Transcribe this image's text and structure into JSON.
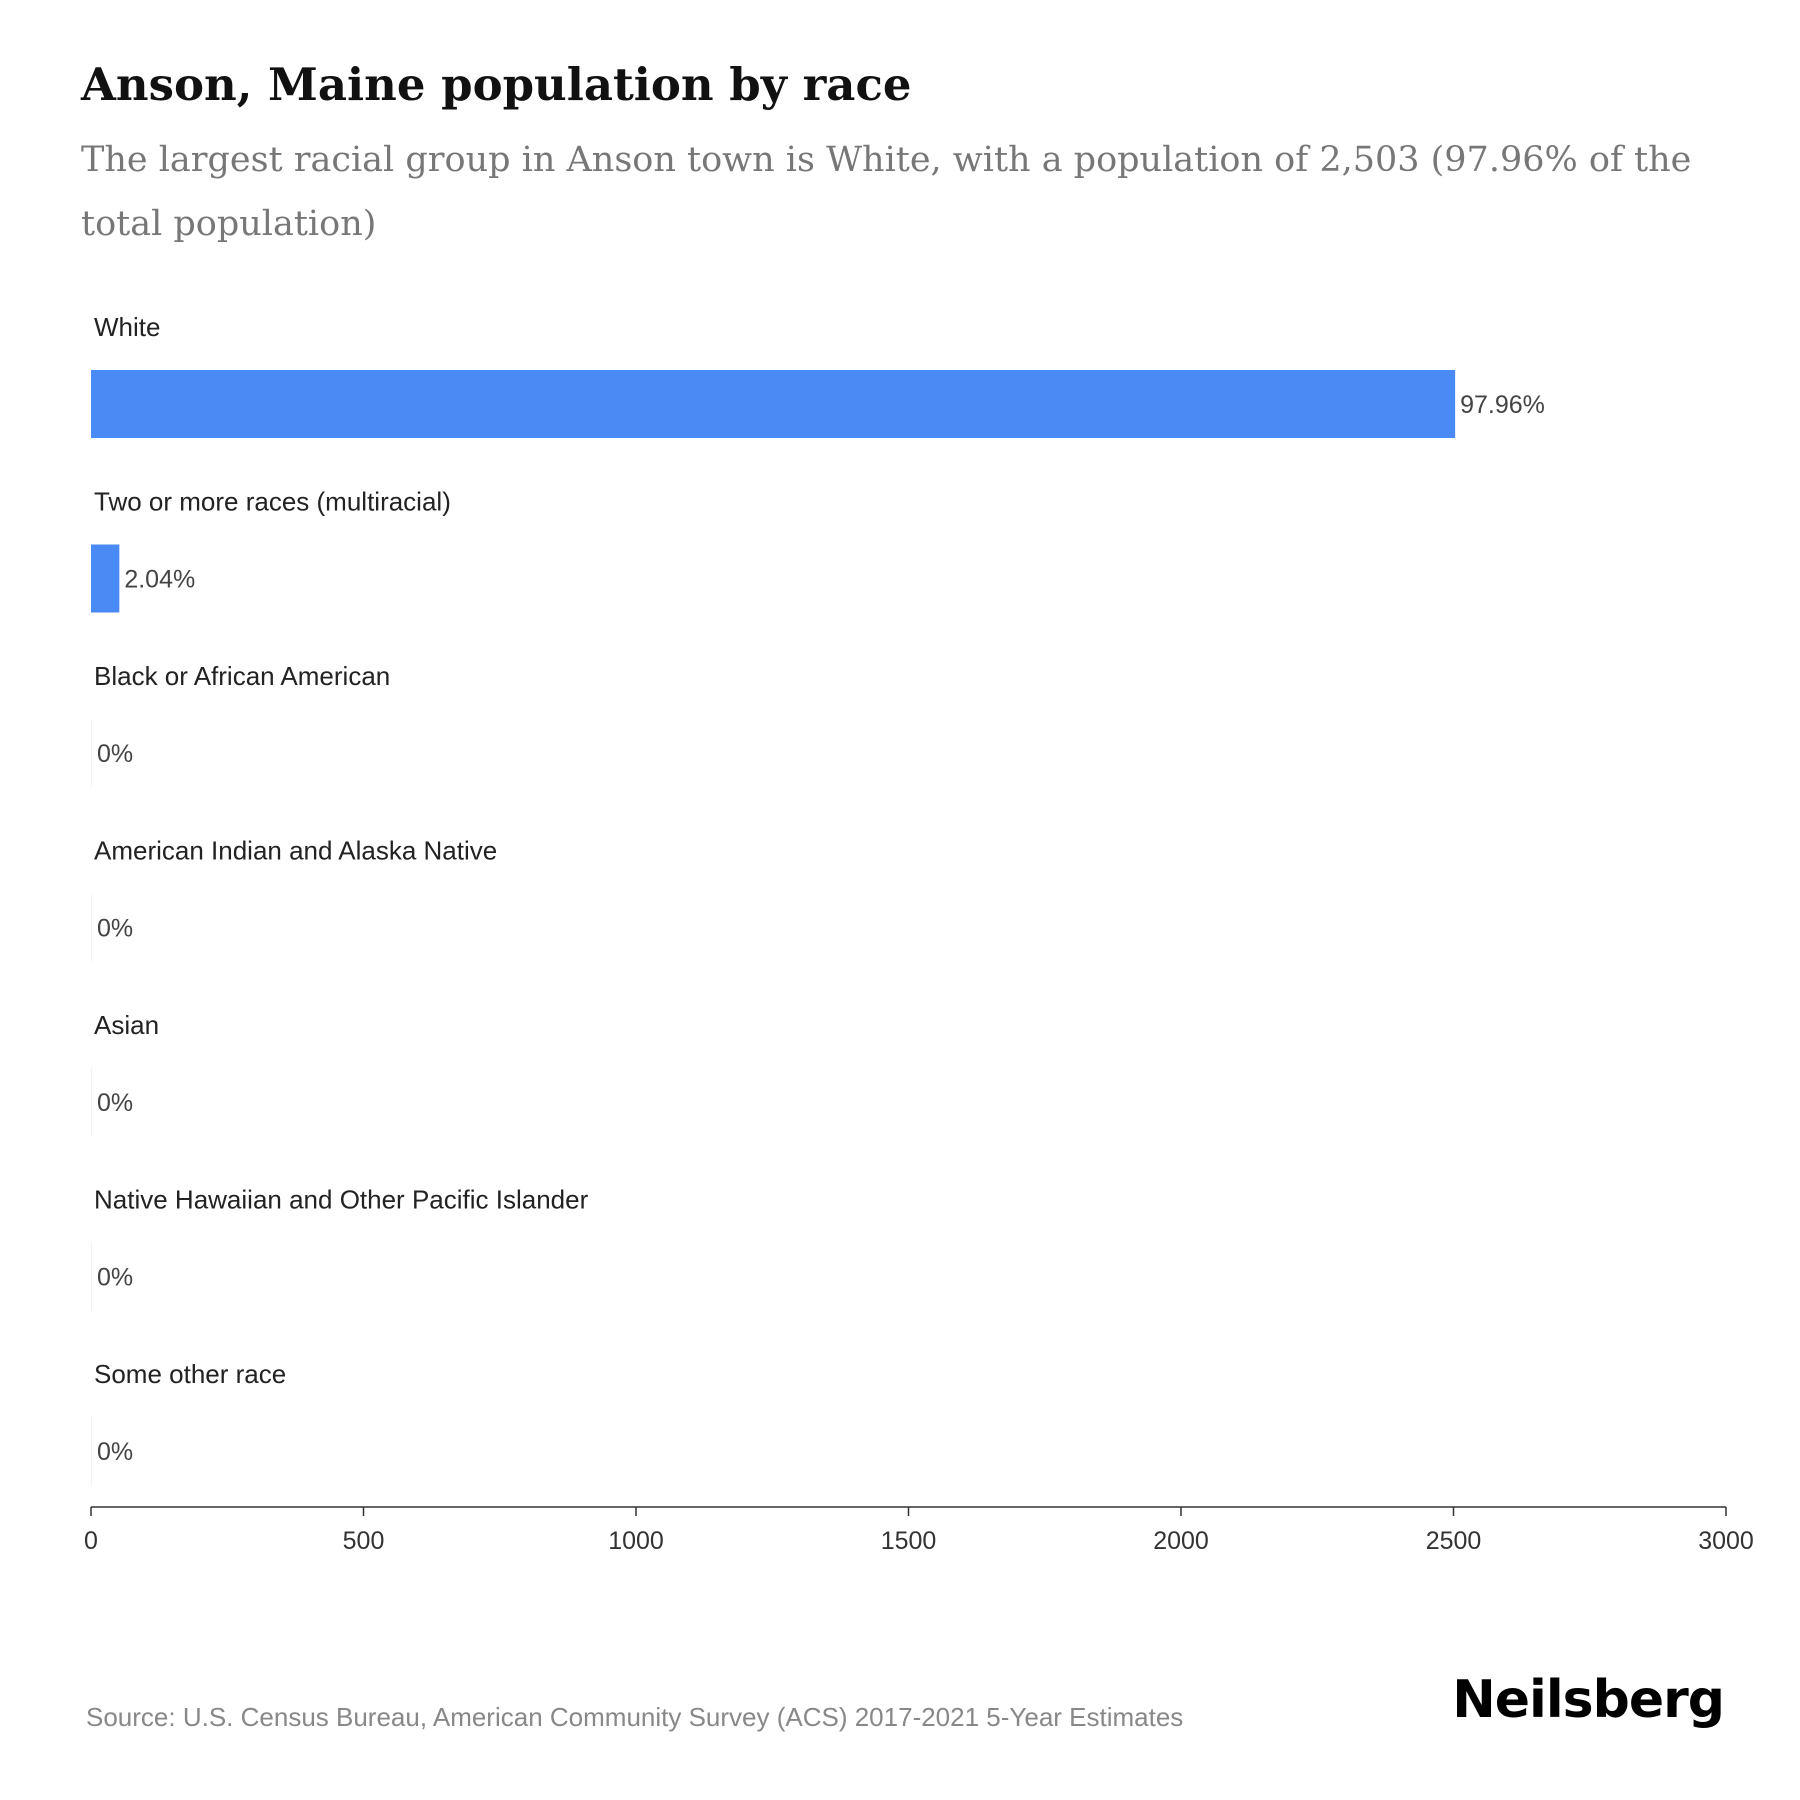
{
  "header": {
    "title": "Anson, Maine population by race",
    "subtitle": "The largest racial group in Anson town is White, with a population of 2,503 (97.96% of the total population)"
  },
  "chart_data": {
    "type": "bar",
    "orientation": "horizontal",
    "categories": [
      "White",
      "Two or more races (multiracial)",
      "Black or African American",
      "American Indian and Alaska Native",
      "Asian",
      "Native Hawaiian and Other Pacific Islander",
      "Some other race"
    ],
    "values": [
      2503,
      52,
      0,
      0,
      0,
      0,
      0
    ],
    "value_labels": [
      "97.96%",
      "2.04%",
      "0%",
      "0%",
      "0%",
      "0%",
      "0%"
    ],
    "xlim": [
      0,
      3000
    ],
    "xticks": [
      0,
      500,
      1000,
      1500,
      2000,
      2500,
      3000
    ],
    "bar_color": "#4a8af4",
    "grid": false,
    "legend": "none"
  },
  "footer": {
    "source": "Source: U.S. Census Bureau, American Community Survey (ACS) 2017-2021 5-Year Estimates",
    "logo": "Neilsberg"
  }
}
